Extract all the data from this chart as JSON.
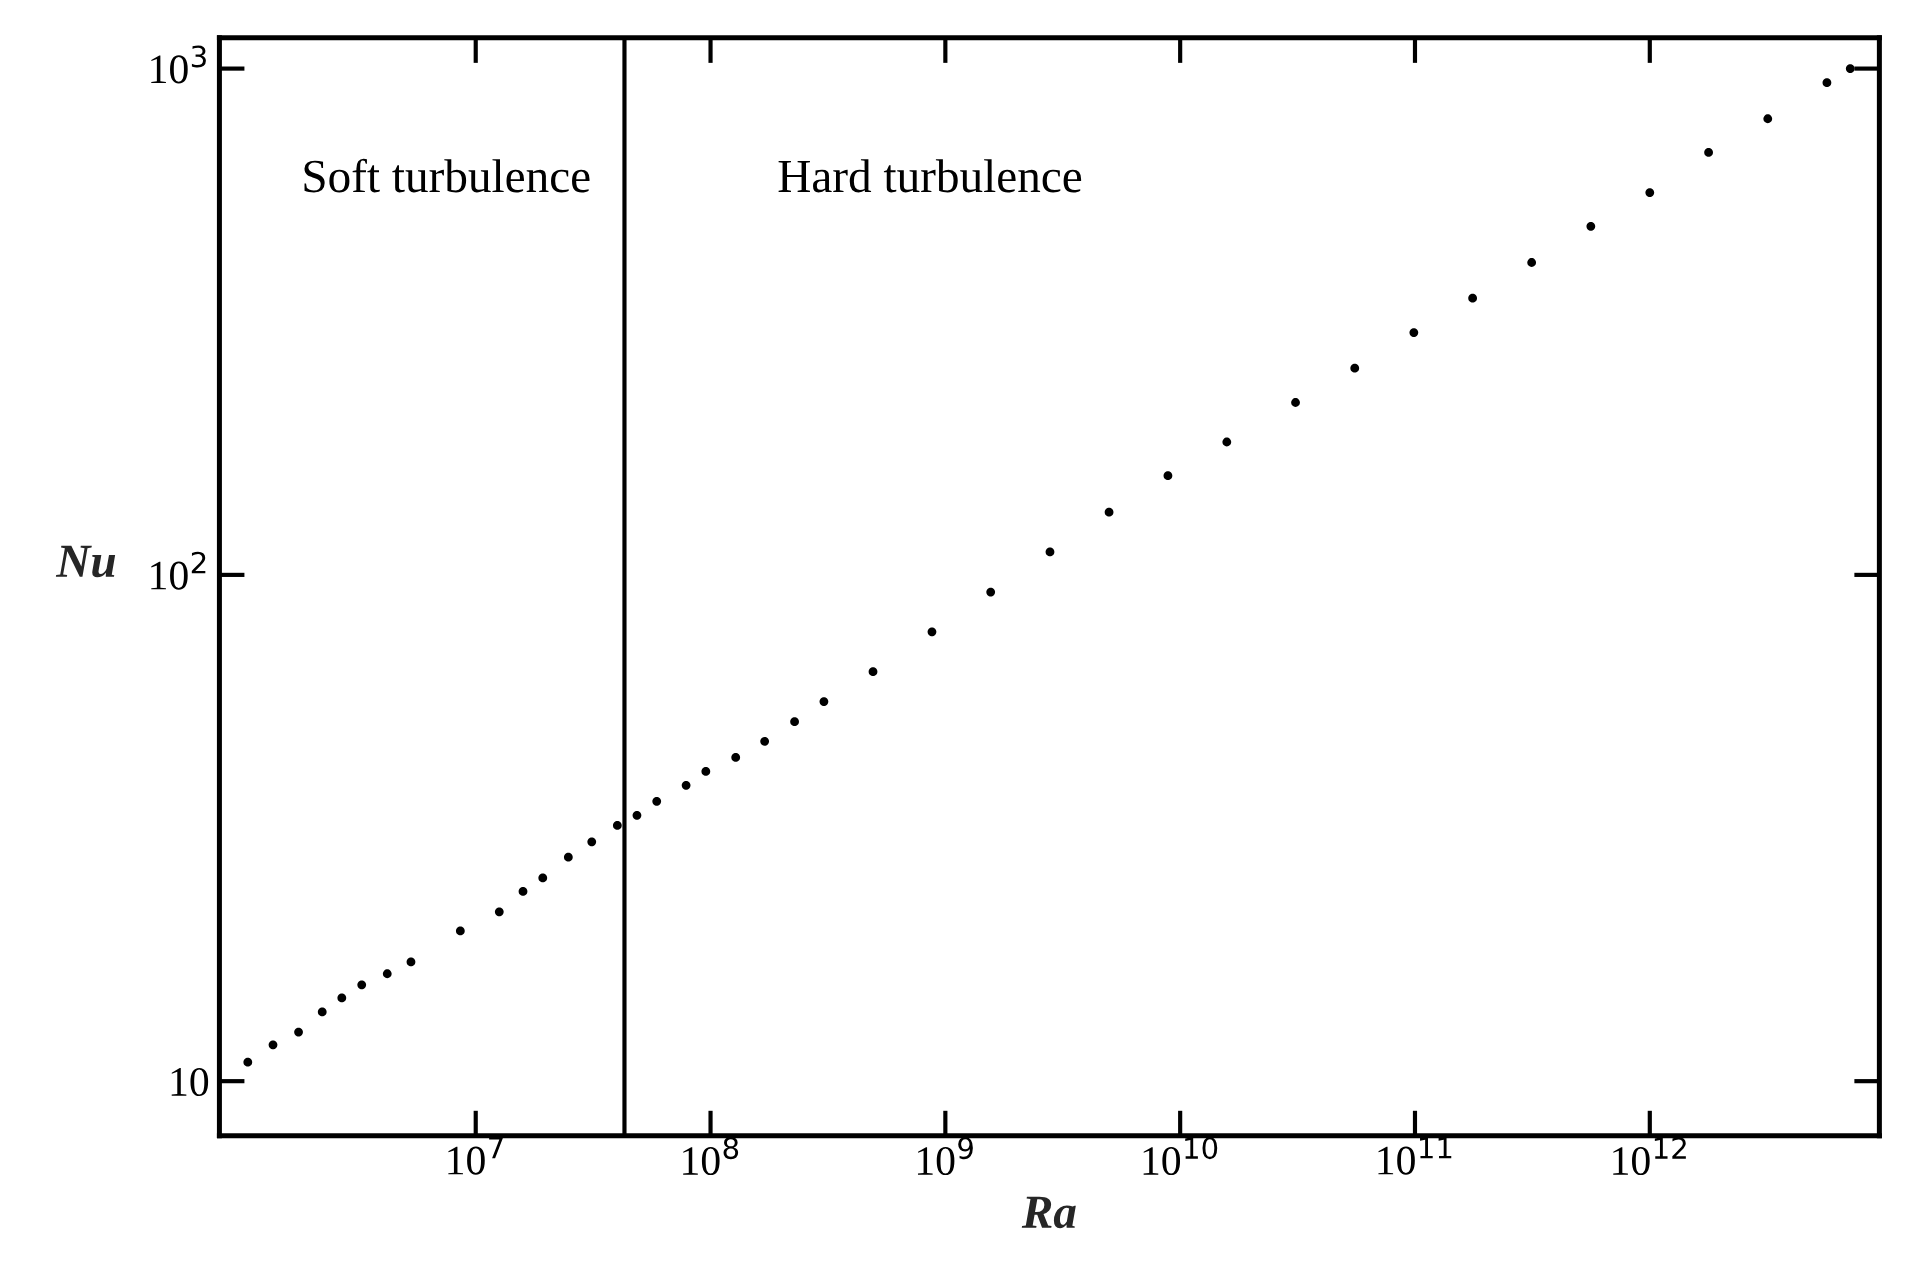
{
  "chart_data": {
    "type": "scatter",
    "xlabel": "Ra",
    "ylabel": "Nu",
    "log": "xy",
    "grid": false,
    "marker": "circle",
    "xlim": [
      810000,
      9500000000000
    ],
    "ylim": [
      7.8,
      1150
    ],
    "xticks": [
      {
        "value": 10000000,
        "label": "10$^{7}$"
      },
      {
        "value": 100000000,
        "label": "10$^{8}$"
      },
      {
        "value": 1000000000,
        "label": "10$^{9}$"
      },
      {
        "value": 10000000000,
        "label": "10$^{10}$"
      },
      {
        "value": 100000000000,
        "label": "10$^{11}$"
      },
      {
        "value": 1000000000000,
        "label": "10$^{12}$"
      }
    ],
    "yticks": [
      10,
      {
        "value": 100,
        "label": "10$^{2}$"
      },
      {
        "value": 1000,
        "label": "10$^{3}$"
      }
    ],
    "ref_lines": [
      {
        "axis": "x",
        "value": 43000000,
        "color": "#000000",
        "line_style": "solid"
      }
    ],
    "annotations": [
      "Soft turbulence",
      "Hard turbulence"
    ],
    "series": [
      {
        "color": "#000000",
        "x": [
          1070000,
          1370000,
          1760000,
          2220000,
          2690000,
          3270000,
          4200000,
          5300000,
          8600000,
          12600000,
          15900000,
          19300000,
          24800000,
          31200000,
          40100000,
          48600000,
          59000000,
          78700000,
          95500000,
          128000000,
          170000000,
          228000000,
          304000000,
          492000000,
          877000000,
          1560000000,
          2790000000,
          4980000000,
          8870000000,
          15800000000,
          31000000000,
          55400000000,
          98900000000,
          176000000000,
          314000000000,
          561000000000,
          1000000000000,
          1780000000000,
          3180000000000,
          5680000000000,
          7140000000000
        ],
        "values": [
          10.9,
          11.8,
          12.5,
          13.7,
          14.6,
          15.5,
          16.3,
          17.2,
          19.8,
          21.6,
          23.7,
          25.2,
          27.7,
          29.7,
          32.0,
          33.5,
          35.7,
          38.4,
          40.9,
          43.6,
          46.9,
          51.3,
          56.2,
          64.4,
          77.2,
          92.5,
          111,
          133,
          157,
          183,
          219,
          256,
          301,
          352,
          414,
          488,
          569,
          683,
          796,
          938,
          1000
        ]
      }
    ]
  }
}
